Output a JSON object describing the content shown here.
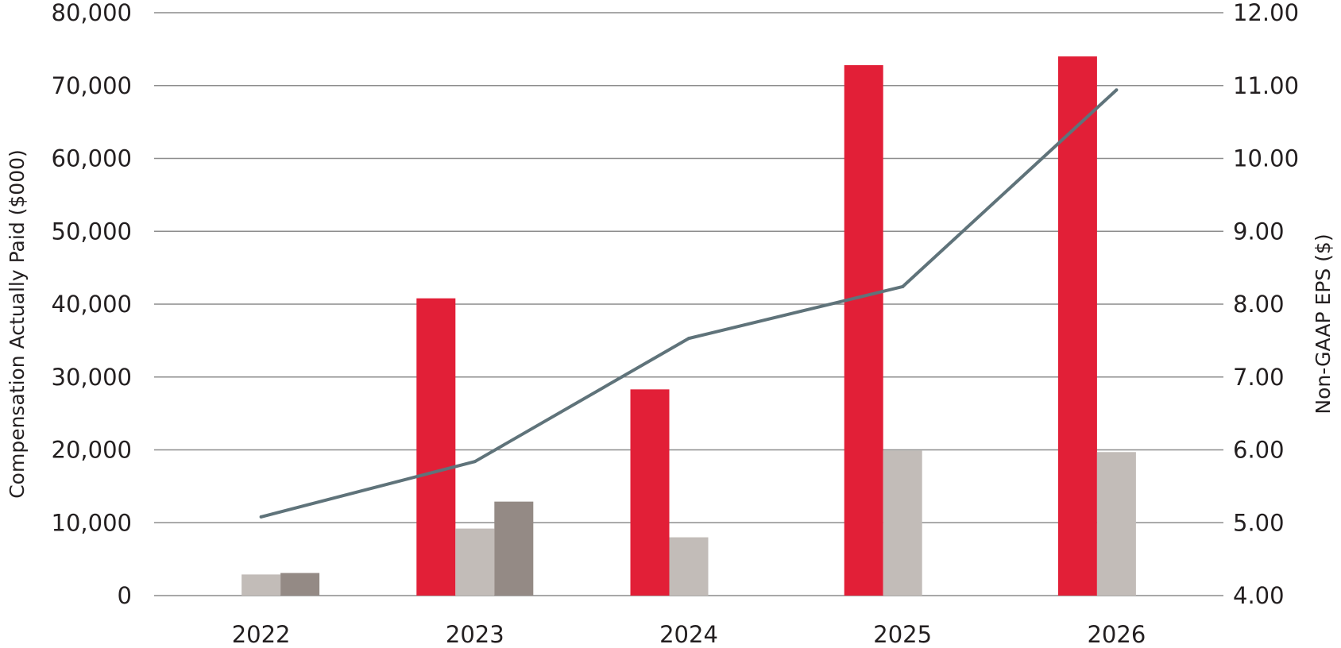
{
  "chart_data": {
    "type": "bar",
    "categories": [
      "2022",
      "2023",
      "2024",
      "2025",
      "2026"
    ],
    "series": [
      {
        "axis": "left",
        "color": "#e21f37",
        "values": [
          null,
          40800,
          28300,
          72800,
          74000
        ]
      },
      {
        "axis": "left",
        "color": "#c2bcb8",
        "values": [
          2900,
          9200,
          8000,
          19900,
          19700
        ]
      },
      {
        "axis": "left",
        "color": "#948a85",
        "values": [
          3100,
          12900,
          null,
          null,
          null
        ]
      },
      {
        "axis": "right",
        "type": "line",
        "color": "#5f737a",
        "values": [
          5.08,
          5.84,
          7.53,
          8.24,
          10.94
        ]
      }
    ],
    "ylabel": "Compensation Actually Paid ($000)",
    "ylim": [
      0,
      80000
    ],
    "y_ticks": [
      "0",
      "10,000",
      "20,000",
      "30,000",
      "40,000",
      "50,000",
      "60,000",
      "70,000",
      "80,000"
    ],
    "y2label": "Non-GAAP EPS ($)",
    "y2lim": [
      4.0,
      12.0
    ],
    "y2_ticks": [
      "4.00",
      "5.00",
      "6.00",
      "7.00",
      "8.00",
      "9.00",
      "10.00",
      "11.00",
      "12.00"
    ],
    "grid": true
  }
}
